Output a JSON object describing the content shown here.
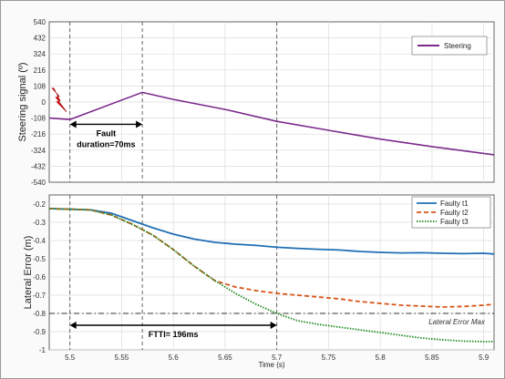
{
  "colors": {
    "steering": "#7b2a8c",
    "t1": "#1f6fb4",
    "t2": "#d9541a",
    "t3": "#1f8a1f",
    "marker": "#555555",
    "limit": "#333333",
    "bolt": "#e01a1a"
  },
  "icons": {
    "fault_marker": "lightning-bolt-icon"
  },
  "chart_data": [
    {
      "type": "line",
      "title": "",
      "xlabel": "",
      "ylabel": "Steering signal (º)",
      "xlim": [
        5.48,
        5.91
      ],
      "ylim": [
        -540,
        540
      ],
      "yticks": [
        "540",
        "432",
        "324",
        "216",
        "108",
        "0",
        "-108",
        "-216",
        "-324",
        "-432",
        "-540"
      ],
      "legend": {
        "position": "top-right",
        "entries": [
          "Steering"
        ]
      },
      "vlines": [
        5.5,
        5.57,
        5.7
      ],
      "annotation": {
        "text_line1": "Fault",
        "text_line2": "duration=70ms",
        "from": 5.5,
        "to": 5.57
      },
      "series": [
        {
          "name": "Steering",
          "x": [
            5.48,
            5.5,
            5.57,
            5.6,
            5.65,
            5.7,
            5.75,
            5.8,
            5.85,
            5.91
          ],
          "y": [
            -108,
            -118,
            65,
            18,
            -50,
            -130,
            -190,
            -250,
            -300,
            -355
          ]
        }
      ]
    },
    {
      "type": "line",
      "title": "",
      "xlabel": "Time (s)",
      "ylabel": "Lateral Error (m)",
      "xlim": [
        5.48,
        5.91
      ],
      "ylim": [
        -1.0,
        -0.15
      ],
      "xticks": [
        "5.5",
        "5.55",
        "5.6",
        "5.65",
        "5.7",
        "5.75",
        "5.8",
        "5.85",
        "5.9"
      ],
      "yticks": [
        "-0.2",
        "-0.3",
        "-0.4",
        "-0.5",
        "-0.6",
        "-0.7",
        "-0.8",
        "-0.9",
        "-1"
      ],
      "legend": {
        "position": "top-right",
        "entries": [
          "Faulty t1",
          "Faulty t2",
          "Faulty t3"
        ]
      },
      "vlines": [
        5.5,
        5.57,
        5.7
      ],
      "hline": {
        "y": -0.8,
        "label": "Lateral Error Max"
      },
      "annotation": {
        "text": "FTTI= 196ms",
        "from": 5.5,
        "to": 5.7
      },
      "series": [
        {
          "name": "Faulty t1",
          "x": [
            5.48,
            5.5,
            5.52,
            5.54,
            5.56,
            5.58,
            5.6,
            5.62,
            5.64,
            5.66,
            5.68,
            5.7,
            5.72,
            5.74,
            5.76,
            5.78,
            5.8,
            5.82,
            5.84,
            5.86,
            5.88,
            5.9,
            5.91
          ],
          "y": [
            -0.225,
            -0.228,
            -0.232,
            -0.25,
            -0.29,
            -0.33,
            -0.365,
            -0.392,
            -0.41,
            -0.42,
            -0.427,
            -0.437,
            -0.443,
            -0.448,
            -0.452,
            -0.46,
            -0.465,
            -0.468,
            -0.467,
            -0.47,
            -0.472,
            -0.47,
            -0.474
          ]
        },
        {
          "name": "Faulty t2",
          "x": [
            5.48,
            5.5,
            5.52,
            5.54,
            5.56,
            5.58,
            5.6,
            5.62,
            5.64,
            5.66,
            5.68,
            5.7,
            5.72,
            5.74,
            5.76,
            5.78,
            5.8,
            5.82,
            5.84,
            5.86,
            5.88,
            5.9,
            5.91
          ],
          "y": [
            -0.225,
            -0.228,
            -0.232,
            -0.26,
            -0.31,
            -0.37,
            -0.45,
            -0.54,
            -0.62,
            -0.655,
            -0.675,
            -0.69,
            -0.7,
            -0.71,
            -0.72,
            -0.735,
            -0.745,
            -0.755,
            -0.76,
            -0.765,
            -0.762,
            -0.755,
            -0.75
          ]
        },
        {
          "name": "Faulty t3",
          "x": [
            5.48,
            5.5,
            5.52,
            5.54,
            5.56,
            5.58,
            5.6,
            5.62,
            5.64,
            5.66,
            5.68,
            5.7,
            5.72,
            5.74,
            5.76,
            5.78,
            5.8,
            5.82,
            5.84,
            5.86,
            5.88,
            5.9,
            5.91
          ],
          "y": [
            -0.225,
            -0.228,
            -0.232,
            -0.26,
            -0.31,
            -0.37,
            -0.45,
            -0.54,
            -0.62,
            -0.69,
            -0.75,
            -0.8,
            -0.84,
            -0.86,
            -0.875,
            -0.89,
            -0.905,
            -0.92,
            -0.935,
            -0.945,
            -0.952,
            -0.955,
            -0.955
          ]
        }
      ]
    }
  ]
}
